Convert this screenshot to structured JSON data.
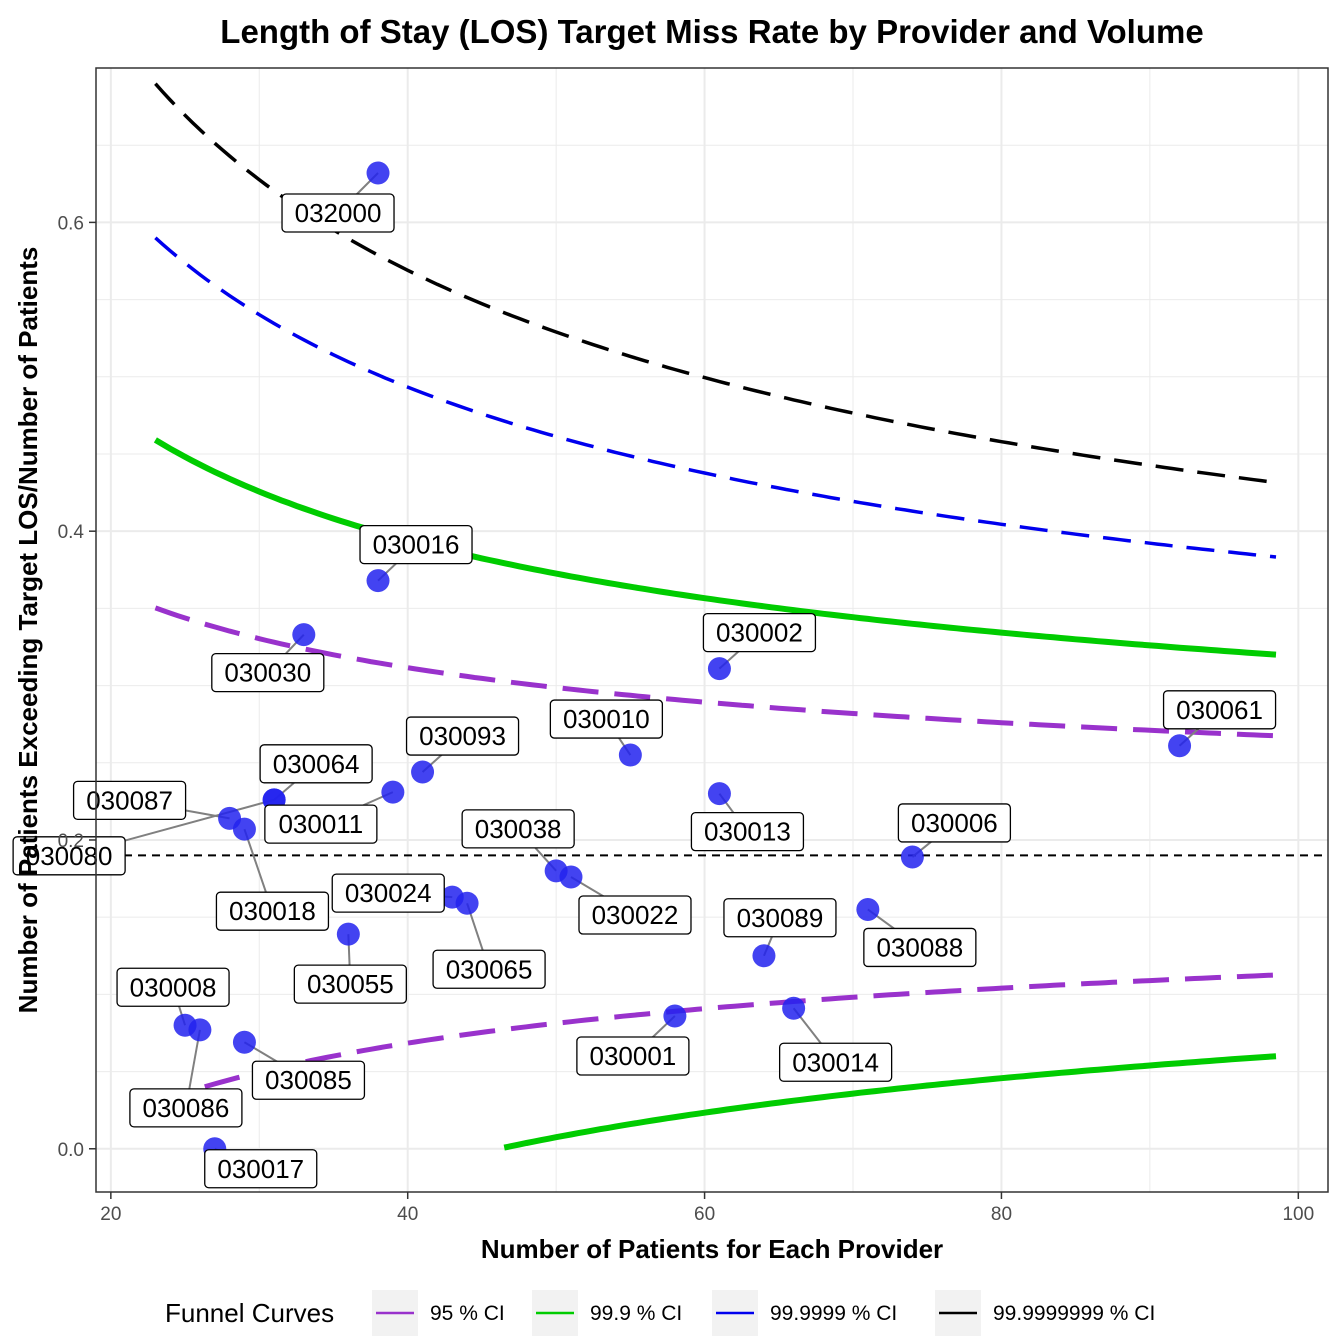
{
  "chart_data": {
    "type": "scatter",
    "title": "Length of Stay (LOS) Target Miss Rate by Provider and Volume",
    "xlabel": "Number of Patients for Each Provider",
    "ylabel": "Number of Patients Exceeding Target LOS/Number of Patients",
    "xlim": [
      19,
      102
    ],
    "ylim": [
      -0.028,
      0.7
    ],
    "x_ticks": [
      20,
      40,
      60,
      80,
      100
    ],
    "x_tick_labels": [
      "20",
      "40",
      "60",
      "80",
      "100"
    ],
    "y_ticks": [
      0.0,
      0.2,
      0.4,
      0.6
    ],
    "y_tick_labels": [
      "0.0",
      "0.2",
      "0.4",
      "0.6"
    ],
    "grid": true,
    "target_rate": 0.19,
    "points": [
      {
        "label": "032000",
        "x": 38,
        "y": 0.632
      },
      {
        "label": "030016",
        "x": 38,
        "y": 0.368
      },
      {
        "label": "030030",
        "x": 33,
        "y": 0.333
      },
      {
        "label": "030002",
        "x": 61,
        "y": 0.311
      },
      {
        "label": "030061",
        "x": 92,
        "y": 0.261
      },
      {
        "label": "030093",
        "x": 41,
        "y": 0.244
      },
      {
        "label": "030010",
        "x": 55,
        "y": 0.255
      },
      {
        "label": "030064",
        "x": 31,
        "y": 0.226
      },
      {
        "label": "030087",
        "x": 28,
        "y": 0.214
      },
      {
        "label": "030011",
        "x": 39,
        "y": 0.231
      },
      {
        "label": "030013",
        "x": 61,
        "y": 0.23
      },
      {
        "label": "030080",
        "x": 31,
        "y": 0.226
      },
      {
        "label": "030018",
        "x": 29,
        "y": 0.207
      },
      {
        "label": "030006",
        "x": 74,
        "y": 0.189
      },
      {
        "label": "030038",
        "x": 50,
        "y": 0.18
      },
      {
        "label": "030022",
        "x": 51,
        "y": 0.176
      },
      {
        "label": "030024",
        "x": 43,
        "y": 0.163
      },
      {
        "label": "030065",
        "x": 44,
        "y": 0.159
      },
      {
        "label": "030088",
        "x": 71,
        "y": 0.155
      },
      {
        "label": "030055",
        "x": 36,
        "y": 0.139
      },
      {
        "label": "030089",
        "x": 64,
        "y": 0.125
      },
      {
        "label": "030014",
        "x": 66,
        "y": 0.091
      },
      {
        "label": "030001",
        "x": 58,
        "y": 0.086
      },
      {
        "label": "030008",
        "x": 25,
        "y": 0.08
      },
      {
        "label": "030086",
        "x": 26,
        "y": 0.077
      },
      {
        "label": "030085",
        "x": 29,
        "y": 0.069
      },
      {
        "label": "030017",
        "x": 27,
        "y": 0.0
      }
    ],
    "legend": {
      "title": "Funnel Curves",
      "placement": "bottom",
      "entries": [
        {
          "name": "95 % CI",
          "color": "#9932CC"
        },
        {
          "name": "99.9 % CI",
          "color": "#00CC00"
        },
        {
          "name": "99.9999 % CI",
          "color": "#0000EE"
        },
        {
          "name": "99.9999999 % CI",
          "color": "#000000"
        }
      ]
    },
    "funnels": [
      {
        "name": "95 % CI",
        "color": "#9932CC",
        "style": "long-dash",
        "z": 1.96
      },
      {
        "name": "99.9 % CI",
        "color": "#00CC00",
        "style": "solid",
        "z": 3.29
      },
      {
        "name": "99.9999 % CI",
        "color": "#0000EE",
        "style": "dash",
        "z": 4.89
      },
      {
        "name": "99.9999999 % CI",
        "color": "#000000",
        "style": "dash",
        "z": 6.11
      }
    ],
    "point_color": "#2222EE"
  }
}
